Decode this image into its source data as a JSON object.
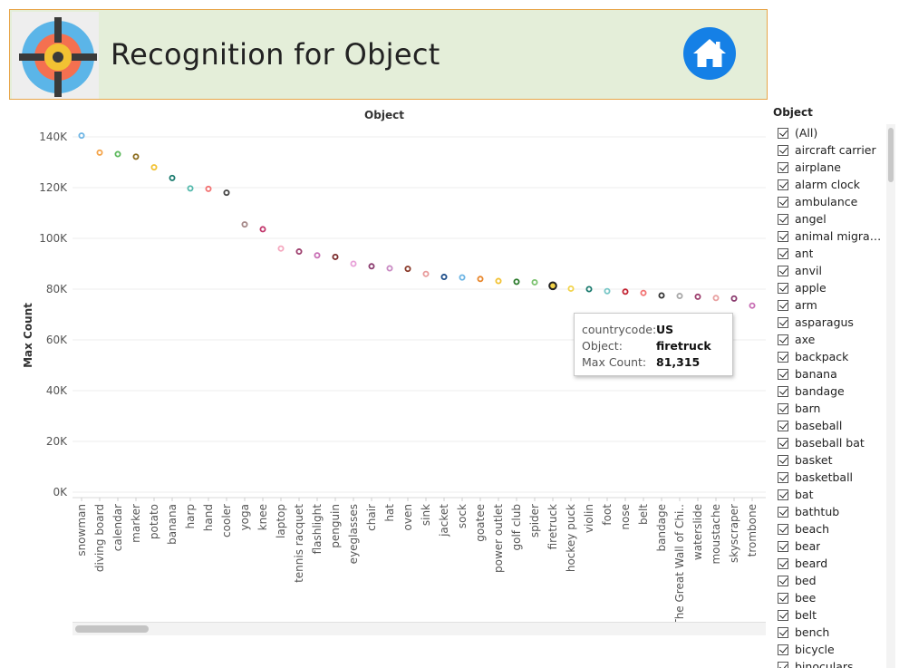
{
  "header": {
    "title": "Recognition for Object",
    "logo_icon": "target-crosshair-icon",
    "home_icon": "home-icon",
    "colors": {
      "background": "#e4eed9",
      "border": "#e8a54a",
      "home_button": "#1580e6"
    }
  },
  "chart_data": {
    "type": "scatter",
    "title": "Object",
    "xlabel": "",
    "ylabel": "Max Count",
    "ylim": [
      0,
      145000
    ],
    "y_ticks": [
      0,
      20000,
      40000,
      60000,
      80000,
      100000,
      120000,
      140000
    ],
    "y_tick_labels": [
      "0K",
      "20K",
      "40K",
      "60K",
      "80K",
      "100K",
      "120K",
      "140K"
    ],
    "grid": "horizontal",
    "categories": [
      "snowman",
      "diving board",
      "calendar",
      "marker",
      "potato",
      "banana",
      "harp",
      "hand",
      "cooler",
      "yoga",
      "knee",
      "laptop",
      "tennis racquet",
      "flashlight",
      "penguin",
      "eyeglasses",
      "chair",
      "hat",
      "oven",
      "sink",
      "jacket",
      "sock",
      "goatee",
      "power outlet",
      "golf club",
      "spider",
      "firetruck",
      "hockey puck",
      "violin",
      "foot",
      "nose",
      "belt",
      "bandage",
      "The Great Wall of Chi..",
      "waterslide",
      "moustache",
      "skyscraper",
      "trombone"
    ],
    "values": [
      140500,
      133800,
      133200,
      132200,
      128000,
      123800,
      119700,
      119500,
      118000,
      105500,
      103600,
      96000,
      94800,
      93300,
      92700,
      90000,
      89000,
      88200,
      88000,
      86000,
      84800,
      84600,
      84000,
      83200,
      82900,
      82700,
      81315,
      80200,
      80000,
      79200,
      79000,
      78500,
      77500,
      77300,
      77000,
      76500,
      76300,
      73500
    ],
    "colors": [
      "#6cb4e4",
      "#f4a44a",
      "#5cb85c",
      "#8a6a1a",
      "#f2c233",
      "#1a7a6e",
      "#52b8ab",
      "#f27272",
      "#444444",
      "#a58888",
      "#c2376c",
      "#f5a8bf",
      "#9d3f6e",
      "#c86eb4",
      "#7a2a2a",
      "#e8a0d8",
      "#8a3a6e",
      "#c98ac3",
      "#8a3a2a",
      "#e89a9a",
      "#1f4f8a",
      "#6cb4e4",
      "#e8852a",
      "#f2c233",
      "#2a7a2a",
      "#7ac26e",
      "#222222",
      "#f2d34a",
      "#1a7a6e",
      "#76c6c6",
      "#c22030",
      "#f27272",
      "#333333",
      "#a8a8a8",
      "#9d3f6e",
      "#e8a0a0",
      "#8a3a6e",
      "#c86eb4"
    ],
    "highlighted": "firetruck"
  },
  "tooltip": {
    "rows": [
      {
        "key": "countrycode:",
        "value": "US"
      },
      {
        "key": "Object:",
        "value": "firetruck"
      },
      {
        "key": "Max Count:",
        "value": "81,315"
      }
    ]
  },
  "filter": {
    "title": "Object",
    "items": [
      "(All)",
      "aircraft carrier",
      "airplane",
      "alarm clock",
      "ambulance",
      "angel",
      "animal migrat...",
      "ant",
      "anvil",
      "apple",
      "arm",
      "asparagus",
      "axe",
      "backpack",
      "banana",
      "bandage",
      "barn",
      "baseball",
      "baseball bat",
      "basket",
      "basketball",
      "bat",
      "bathtub",
      "beach",
      "bear",
      "beard",
      "bed",
      "bee",
      "belt",
      "bench",
      "bicycle",
      "binoculars"
    ]
  }
}
